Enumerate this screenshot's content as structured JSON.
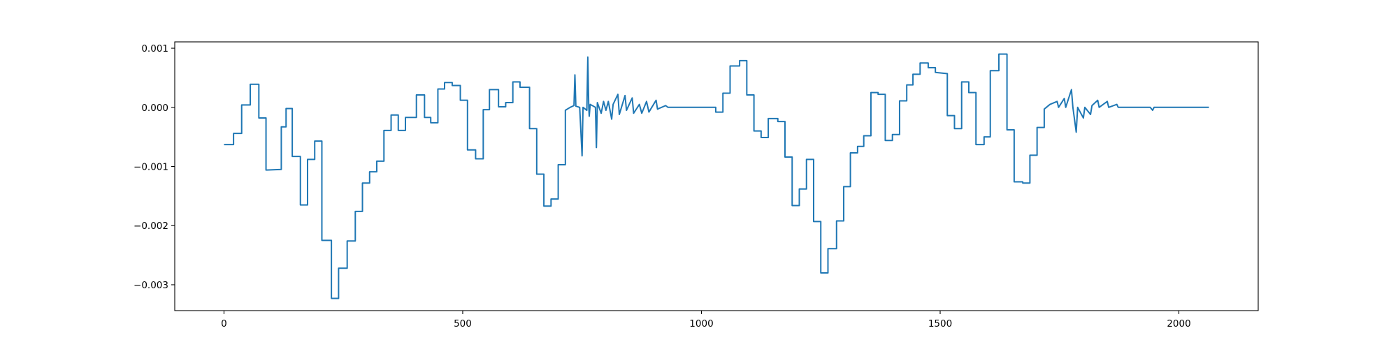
{
  "chart_data": {
    "type": "line",
    "color": "#1f77b4",
    "xlim": [
      -103.15,
      2166.15
    ],
    "ylim": [
      -0.003437,
      0.001107
    ],
    "xticks": [
      0,
      500,
      1000,
      1500,
      2000
    ],
    "yticks": [
      {
        "value": -0.003,
        "label": "−0.003"
      },
      {
        "value": -0.002,
        "label": "−0.002"
      },
      {
        "value": -0.001,
        "label": "−0.001"
      },
      {
        "value": 0,
        "label": "0.000"
      },
      {
        "value": 0.001,
        "label": "0.001"
      }
    ],
    "grid": false,
    "x": [
      0,
      20,
      20,
      37,
      37,
      55,
      55,
      73,
      73,
      88,
      88,
      120,
      120,
      130,
      130,
      143,
      143,
      160,
      160,
      175,
      175,
      190,
      190,
      205,
      205,
      225,
      225,
      240,
      240,
      258,
      258,
      275,
      275,
      290,
      290,
      305,
      305,
      320,
      320,
      335,
      335,
      350,
      350,
      365,
      365,
      380,
      380,
      403,
      403,
      420,
      420,
      433,
      433,
      448,
      448,
      462,
      462,
      478,
      478,
      495,
      495,
      510,
      510,
      527,
      527,
      543,
      543,
      556,
      556,
      575,
      575,
      590,
      590,
      605,
      605,
      620,
      620,
      640,
      640,
      655,
      655,
      670,
      670,
      685,
      685,
      700,
      700,
      715,
      715,
      725,
      733,
      735,
      737,
      745,
      750,
      752,
      760,
      762,
      764,
      765,
      767,
      778,
      780,
      782,
      790,
      795,
      800,
      805,
      812,
      815,
      825,
      828,
      840,
      843,
      855,
      858,
      870,
      875,
      885,
      890,
      905,
      908,
      925,
      930,
      1030,
      1030,
      1045,
      1045,
      1060,
      1060,
      1080,
      1080,
      1095,
      1095,
      1110,
      1110,
      1125,
      1125,
      1140,
      1140,
      1160,
      1160,
      1175,
      1175,
      1190,
      1190,
      1205,
      1205,
      1220,
      1220,
      1235,
      1235,
      1250,
      1250,
      1265,
      1265,
      1283,
      1283,
      1298,
      1298,
      1312,
      1312,
      1327,
      1327,
      1340,
      1340,
      1355,
      1355,
      1370,
      1370,
      1385,
      1385,
      1400,
      1400,
      1415,
      1415,
      1430,
      1430,
      1443,
      1443,
      1458,
      1458,
      1475,
      1475,
      1490,
      1490,
      1515,
      1515,
      1530,
      1530,
      1545,
      1545,
      1560,
      1560,
      1575,
      1575,
      1592,
      1592,
      1605,
      1605,
      1623,
      1623,
      1640,
      1640,
      1655,
      1655,
      1673,
      1673,
      1688,
      1688,
      1703,
      1703,
      1718,
      1718,
      1730,
      1745,
      1748,
      1760,
      1763,
      1775,
      1778,
      1785,
      1788,
      1800,
      1803,
      1815,
      1818,
      1830,
      1833,
      1850,
      1853,
      1870,
      1873,
      1940,
      1945,
      1948,
      2063
    ],
    "values": [
      -0.00063,
      -0.00063,
      -0.00044,
      -0.00044,
      4e-05,
      4e-05,
      0.00039,
      0.00039,
      -0.00018,
      -0.00018,
      -0.00106,
      -0.00105,
      -0.00033,
      -0.00033,
      -2e-05,
      -2e-05,
      -0.00083,
      -0.00083,
      -0.00165,
      -0.00165,
      -0.00088,
      -0.00088,
      -0.00057,
      -0.00057,
      -0.00225,
      -0.00225,
      -0.00323,
      -0.00323,
      -0.00272,
      -0.00272,
      -0.00226,
      -0.00226,
      -0.00176,
      -0.00176,
      -0.00128,
      -0.00128,
      -0.00109,
      -0.00109,
      -0.00091,
      -0.00091,
      -0.00039,
      -0.00039,
      -0.00013,
      -0.00013,
      -0.00039,
      -0.00039,
      -0.00017,
      -0.00017,
      0.00021,
      0.00021,
      -0.00017,
      -0.00017,
      -0.00026,
      -0.00026,
      0.00031,
      0.00031,
      0.00042,
      0.00042,
      0.00037,
      0.00037,
      0.00012,
      0.00012,
      -0.00072,
      -0.00072,
      -0.00087,
      -0.00087,
      -4e-05,
      -4e-05,
      0.0003,
      0.0003,
      1e-05,
      1e-05,
      8e-05,
      8e-05,
      0.00043,
      0.00043,
      0.00034,
      0.00034,
      -0.00036,
      -0.00036,
      -0.00113,
      -0.00113,
      -0.00167,
      -0.00167,
      -0.00155,
      -0.00155,
      -0.00097,
      -0.00097,
      -5e-05,
      0,
      3e-05,
      0.00055,
      2e-05,
      0,
      -0.00082,
      0,
      -5e-05,
      0.00085,
      0,
      -0.00015,
      5e-05,
      0,
      -0.00068,
      8e-05,
      -0.0001,
      0.0001,
      -5e-05,
      0.0001,
      -0.0002,
      5e-05,
      0.00022,
      -0.00012,
      0.0002,
      -5e-05,
      0.00016,
      -0.0001,
      5e-05,
      -0.0001,
      0.0001,
      -8e-05,
      0.00012,
      -3e-05,
      3e-05,
      0,
      0,
      -8e-05,
      -8e-05,
      0.00024,
      0.00024,
      0.0007,
      0.0007,
      0.00079,
      0.00079,
      0.00021,
      0.00021,
      -0.0004,
      -0.0004,
      -0.00051,
      -0.00051,
      -0.00019,
      -0.00019,
      -0.00024,
      -0.00024,
      -0.00084,
      -0.00084,
      -0.00166,
      -0.00166,
      -0.00138,
      -0.00138,
      -0.00088,
      -0.00088,
      -0.00193,
      -0.00193,
      -0.0028,
      -0.0028,
      -0.00239,
      -0.00239,
      -0.00192,
      -0.00192,
      -0.00134,
      -0.00134,
      -0.00077,
      -0.00077,
      -0.00066,
      -0.00066,
      -0.00048,
      -0.00048,
      0.00025,
      0.00025,
      0.00022,
      0.00022,
      -0.00056,
      -0.00056,
      -0.00046,
      -0.00046,
      0.00011,
      0.00011,
      0.00038,
      0.00038,
      0.00056,
      0.00056,
      0.00075,
      0.00075,
      0.00067,
      0.00067,
      0.00059,
      0.00057,
      -0.00014,
      -0.00014,
      -0.00036,
      -0.00036,
      0.00043,
      0.00043,
      0.00025,
      0.00025,
      -0.00063,
      -0.00063,
      -0.0005,
      -0.0005,
      0.00062,
      0.00062,
      0.0009,
      0.0009,
      -0.00038,
      -0.00038,
      -0.00126,
      -0.00126,
      -0.00128,
      -0.00128,
      -0.00081,
      -0.00081,
      -0.00034,
      -0.00034,
      -3e-05,
      5e-05,
      0.0001,
      0,
      0.00015,
      0,
      0.0003,
      0,
      -0.00042,
      0,
      -0.00018,
      0,
      -0.00012,
      3e-05,
      0.00012,
      0,
      0.0001,
      0,
      5e-05,
      0,
      0,
      -5e-05,
      0,
      0
    ]
  }
}
